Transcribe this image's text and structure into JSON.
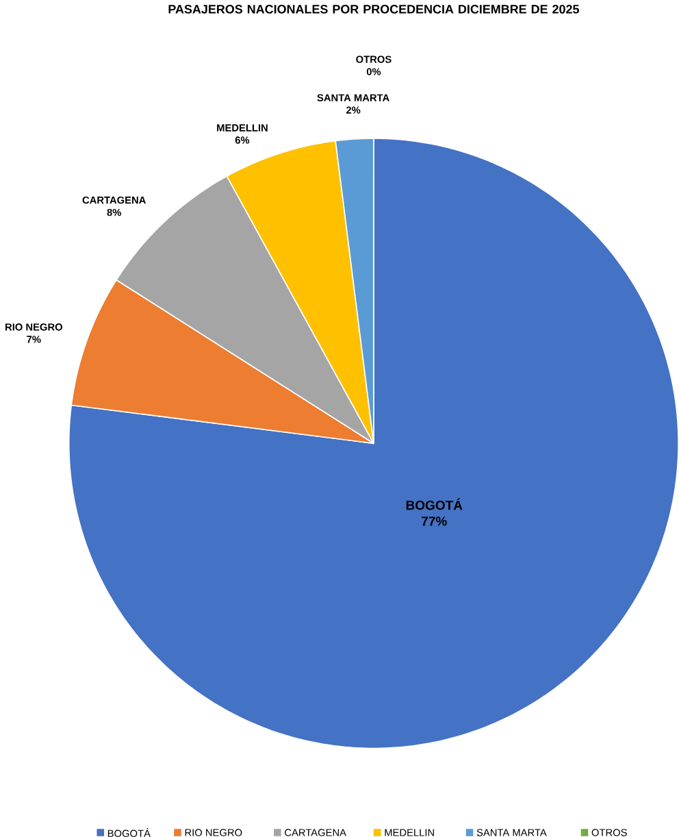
{
  "chart_data": {
    "type": "pie",
    "title": "PASAJEROS NACIONALES POR PROCEDENCIA DICIEMBRE DE 2025",
    "categories": [
      "BOGOTÁ",
      "RIO NEGRO",
      "CARTAGENA",
      "MEDELLIN",
      "SANTA MARTA",
      "OTROS"
    ],
    "values": [
      77,
      7,
      8,
      6,
      2,
      0
    ],
    "colors": [
      "#4472c4",
      "#ed7d31",
      "#a5a5a5",
      "#ffc000",
      "#5b9bd5",
      "#70ad47"
    ],
    "value_labels": [
      "77%",
      "7%",
      "8%",
      "6%",
      "2%",
      "0%"
    ],
    "legend": "bottom"
  }
}
